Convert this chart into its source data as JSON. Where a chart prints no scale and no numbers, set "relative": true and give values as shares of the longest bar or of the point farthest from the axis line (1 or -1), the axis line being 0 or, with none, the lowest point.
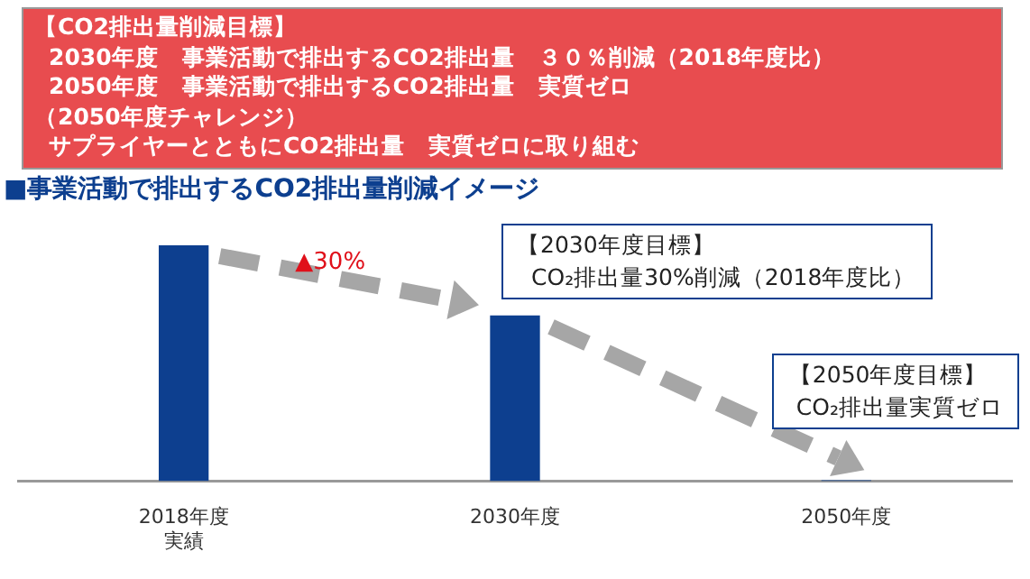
{
  "chart_data": {
    "type": "bar",
    "title": "【CO2排出量削減目標】",
    "subtitle": "■事業活動で排出するCO2排出量削減イメージ",
    "categories": [
      "2018年度実績",
      "2030年度",
      "2050年度"
    ],
    "values": [
      1,
      0.7,
      0
    ],
    "color": "#0d3f8f",
    "relative": true,
    "grid": false,
    "legend": false,
    "annotations": [
      "2030年度　事業活動で排出するCO2排出量　３０％削減（2018年度比）",
      "2050年度　事業活動で排出するCO2排出量　実質ゼロ",
      "（2050年度チャレンジ）",
      "サプライヤーとともにCO2排出量　実質ゼロに取り組む",
      "▲30%",
      "【2030年度目標】",
      "CO₂排出量30%削減（2018年度比）",
      "【2050年度目標】",
      "CO₂排出量実質ゼロ"
    ]
  }
}
